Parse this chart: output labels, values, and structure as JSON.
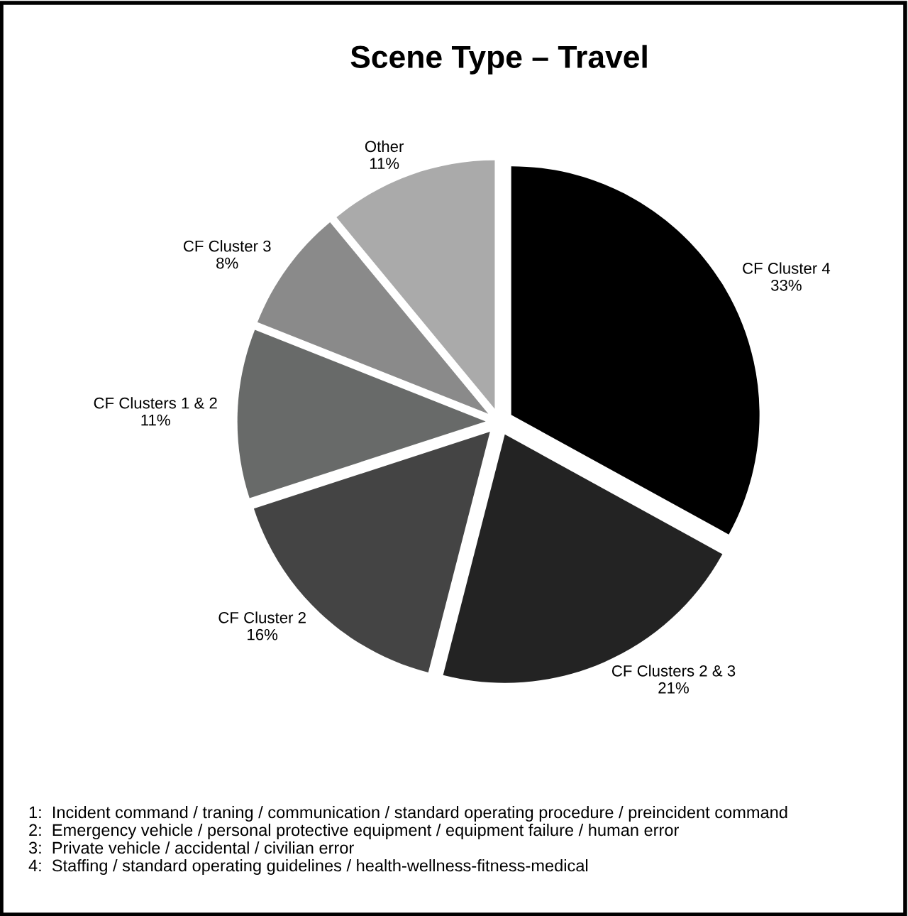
{
  "chart_data": {
    "type": "pie",
    "title": "Scene Type – Travel",
    "categories": [
      "CF Cluster 4",
      "CF Clusters 2 & 3",
      "CF Cluster 2",
      "CF Clusters 1 & 2",
      "CF Cluster 3",
      "Other"
    ],
    "values": [
      33,
      21,
      16,
      11,
      8,
      11
    ],
    "value_labels": [
      "33%",
      "21%",
      "16%",
      "11%",
      "8%",
      "11%"
    ],
    "colors": [
      "#000000",
      "#232323",
      "#444444",
      "#686a69",
      "#8a8a8a",
      "#aaaaaa"
    ],
    "legend": false,
    "annotations": [
      "1:  Incident command / traning / communication / standard operating procedure / preincident command",
      "2:  Emergency vehicle / personal protective equipment / equipment failure / human error",
      "3:  Private vehicle / accidental / civilian error",
      "4:  Staffing / standard operating guidelines / health-wellness-fitness-medical"
    ]
  }
}
